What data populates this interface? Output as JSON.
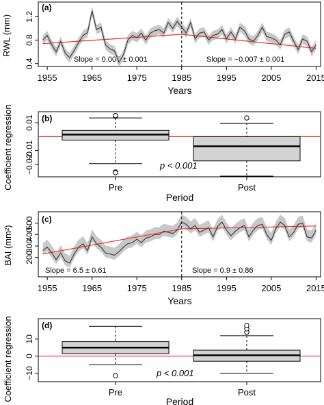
{
  "chart_data": [
    {
      "panel": "(a)",
      "type": "line",
      "ylabel": "RWL (mm)",
      "xlabel": "Years",
      "xlim": [
        1953,
        2016
      ],
      "ylim": [
        0.35,
        1.45
      ],
      "xticks": [
        "1955",
        "1965",
        "1975",
        "1985",
        "1995",
        "2005",
        "2015"
      ],
      "yticks": [
        "0.4",
        "0.8",
        "1.2"
      ],
      "x": [
        1954,
        1955,
        1956,
        1957,
        1958,
        1959,
        1960,
        1961,
        1962,
        1963,
        1964,
        1965,
        1966,
        1967,
        1968,
        1969,
        1970,
        1971,
        1972,
        1973,
        1974,
        1975,
        1976,
        1977,
        1978,
        1979,
        1980,
        1981,
        1982,
        1983,
        1984,
        1985,
        1986,
        1987,
        1988,
        1989,
        1990,
        1991,
        1992,
        1993,
        1994,
        1995,
        1996,
        1997,
        1998,
        1999,
        2000,
        2001,
        2002,
        2003,
        2004,
        2005,
        2006,
        2007,
        2008,
        2009,
        2010,
        2011,
        2012,
        2013,
        2014,
        2015
      ],
      "y": [
        0.8,
        0.88,
        0.72,
        0.6,
        0.78,
        0.58,
        0.5,
        0.62,
        0.76,
        0.88,
        0.93,
        1.3,
        0.98,
        1.02,
        0.72,
        0.65,
        0.62,
        0.42,
        0.55,
        0.8,
        0.88,
        0.84,
        0.92,
        0.8,
        0.92,
        0.96,
        0.98,
        0.92,
        1.1,
        1.0,
        1.12,
        1.02,
        0.92,
        1.1,
        0.82,
        0.92,
        0.94,
        0.8,
        0.88,
        0.9,
        0.98,
        0.82,
        0.94,
        0.82,
        1.02,
        0.96,
        0.82,
        0.78,
        0.88,
        1.02,
        0.86,
        0.84,
        0.8,
        0.72,
        0.9,
        0.94,
        0.78,
        0.64,
        0.82,
        0.78,
        0.6,
        0.72
      ],
      "band": 0.08,
      "breakpoint": 1985,
      "trend": [
        {
          "x": [
            1954,
            1985
          ],
          "y": [
            0.74,
            0.9
          ]
        },
        {
          "x": [
            1985,
            2015
          ],
          "y": [
            0.9,
            0.66
          ]
        }
      ],
      "annotations": [
        "Slope =  0.005 ± 0.001",
        "Slope = −0.007 ± 0.001"
      ]
    },
    {
      "panel": "(b)",
      "type": "box",
      "ylabel": "Coefficient regression",
      "xlabel": "Period",
      "categories": [
        "Pre",
        "Post"
      ],
      "ylim": [
        -0.029,
        0.018
      ],
      "yticks": [
        "0.01",
        "−0.01",
        "−0.02"
      ],
      "boxes": [
        {
          "whisker_low": -0.0195,
          "q1": -0.0025,
          "median": 0.0015,
          "q3": 0.0045,
          "whisker_high": 0.0135,
          "outliers": [
            0.0148,
            0.015,
            0.0152,
            -0.0255,
            -0.026
          ]
        },
        {
          "whisker_low": -0.0285,
          "q1": -0.0175,
          "median": -0.007,
          "q3": 0.0,
          "whisker_high": 0.0095,
          "outliers": [
            0.0135
          ]
        }
      ],
      "reference_line": 0.0,
      "annotation": "p < 0.001"
    },
    {
      "panel": "(c)",
      "type": "line",
      "ylabel": "BAI (mm²)",
      "xlabel": "Years",
      "xlim": [
        1953,
        2016
      ],
      "ylim": [
        30,
        600
      ],
      "xticks": [
        "1955",
        "1965",
        "1975",
        "1985",
        "1995",
        "2005",
        "2015"
      ],
      "yticks": [
        "200",
        "300",
        "400",
        "500"
      ],
      "x": [
        1954,
        1955,
        1956,
        1957,
        1958,
        1959,
        1960,
        1961,
        1962,
        1963,
        1964,
        1965,
        1966,
        1967,
        1968,
        1969,
        1970,
        1971,
        1972,
        1973,
        1974,
        1975,
        1976,
        1977,
        1978,
        1979,
        1980,
        1981,
        1982,
        1983,
        1984,
        1985,
        1986,
        1987,
        1988,
        1989,
        1990,
        1991,
        1992,
        1993,
        1994,
        1995,
        1996,
        1997,
        1998,
        1999,
        2000,
        2001,
        2002,
        2003,
        2004,
        2005,
        2006,
        2007,
        2008,
        2009,
        2010,
        2011,
        2012,
        2013,
        2014,
        2015
      ],
      "y": [
        260,
        290,
        240,
        180,
        240,
        170,
        150,
        230,
        290,
        320,
        260,
        380,
        320,
        290,
        240,
        230,
        220,
        250,
        290,
        320,
        330,
        360,
        330,
        370,
        380,
        400,
        400,
        430,
        420,
        410,
        440,
        510,
        490,
        450,
        480,
        420,
        440,
        460,
        380,
        470,
        510,
        440,
        390,
        430,
        460,
        480,
        380,
        440,
        480,
        490,
        400,
        350,
        450,
        510,
        480,
        380,
        420,
        490,
        500,
        380,
        370,
        440
      ],
      "band_low": 40,
      "band_high": 65,
      "breakpoint": 1985,
      "trend": [
        {
          "x": [
            1954,
            1985
          ],
          "y": [
            230,
            450
          ]
        },
        {
          "x": [
            1985,
            2015
          ],
          "y": [
            450,
            475
          ]
        }
      ],
      "annotations": [
        "Slope = 6.5 ± 0.61",
        "Slope = 0.9 ± 0.86"
      ]
    },
    {
      "panel": "(d)",
      "type": "box",
      "ylabel": "Coefficient regression",
      "xlabel": "Period",
      "categories": [
        "Pre",
        "Post"
      ],
      "ylim": [
        -15,
        22
      ],
      "yticks": [
        "10",
        "0",
        "−10"
      ],
      "boxes": [
        {
          "whisker_low": -5,
          "q1": 1.5,
          "median": 5,
          "q3": 8.5,
          "whisker_high": 17.5,
          "outliers": [
            -11.5
          ]
        },
        {
          "whisker_low": -10,
          "q1": -3,
          "median": 0.5,
          "q3": 3.5,
          "whisker_high": 12,
          "outliers": [
            14,
            16,
            18
          ]
        }
      ],
      "reference_line": 0,
      "annotation": "p < 0.001"
    }
  ]
}
